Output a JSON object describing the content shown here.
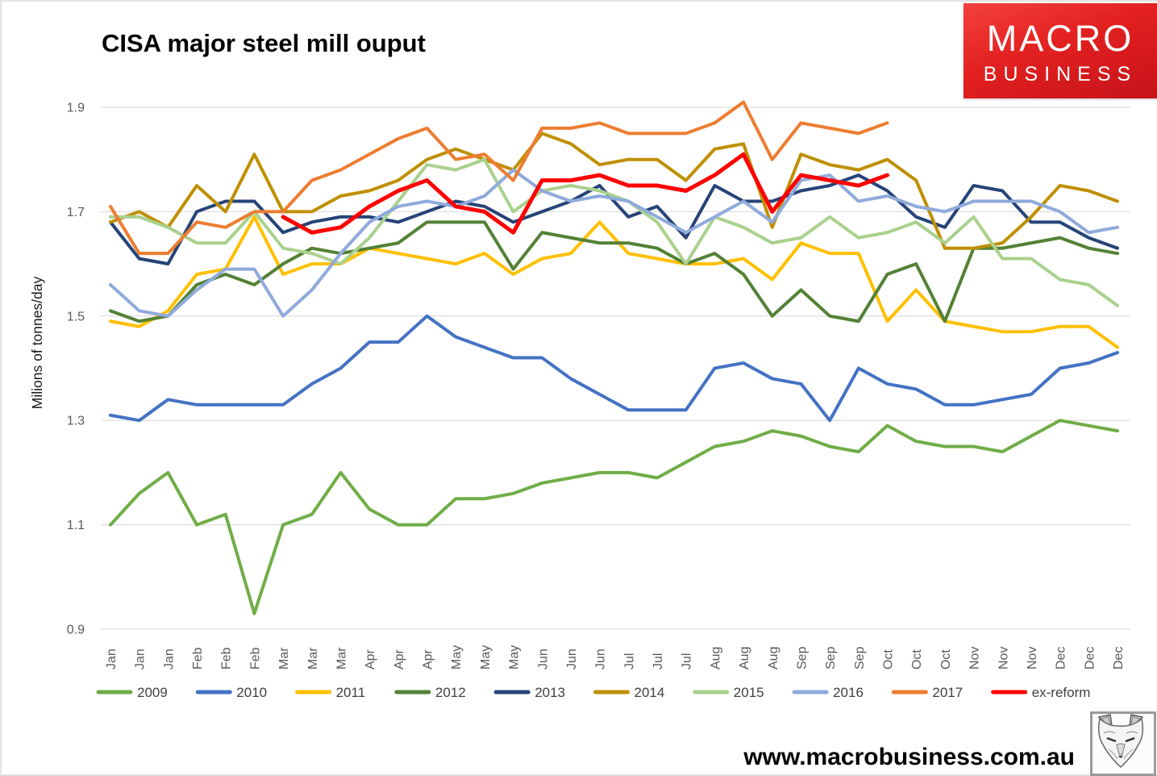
{
  "title": "CISA major steel mill ouput",
  "logo": {
    "line1": "MACRO",
    "line2": "BUSINESS"
  },
  "watermark": "www.macrobusiness.com.au",
  "footer_logo_icon": "fox-sketch-icon",
  "chart_data": {
    "type": "line",
    "title": "CISA major steel mill ouput",
    "xlabel": "",
    "ylabel": "Milions of tonnes/day",
    "ylim": [
      0.9,
      1.9
    ],
    "yticks": [
      0.9,
      1.1,
      1.3,
      1.5,
      1.7,
      1.9
    ],
    "grid": true,
    "legend_position": "bottom",
    "x_labels": [
      "Jan",
      "Jan",
      "Jan",
      "Feb",
      "Feb",
      "Feb",
      "Mar",
      "Mar",
      "Mar",
      "Apr",
      "Apr",
      "Apr",
      "May",
      "May",
      "May",
      "Jun",
      "Jun",
      "Jun",
      "Jul",
      "Jul",
      "Jul",
      "Aug",
      "Aug",
      "Aug",
      "Sep",
      "Sep",
      "Sep",
      "Oct",
      "Oct",
      "Oct",
      "Nov",
      "Nov",
      "Nov",
      "Dec",
      "Dec",
      "Dec"
    ],
    "series": [
      {
        "name": "2009",
        "color": "#70AD47",
        "values": [
          1.1,
          1.16,
          1.2,
          1.1,
          1.12,
          0.93,
          1.1,
          1.12,
          1.2,
          1.13,
          1.1,
          1.1,
          1.15,
          1.15,
          1.16,
          1.18,
          1.19,
          1.2,
          1.2,
          1.19,
          1.22,
          1.25,
          1.26,
          1.28,
          1.27,
          1.25,
          1.24,
          1.29,
          1.26,
          1.25,
          1.25,
          1.24,
          1.27,
          1.3,
          1.29,
          1.28
        ]
      },
      {
        "name": "2010",
        "color": "#4472C4",
        "values": [
          1.31,
          1.3,
          1.34,
          1.33,
          1.33,
          1.33,
          1.33,
          1.37,
          1.4,
          1.45,
          1.45,
          1.5,
          1.46,
          1.44,
          1.42,
          1.42,
          1.38,
          1.35,
          1.32,
          1.32,
          1.32,
          1.4,
          1.41,
          1.38,
          1.37,
          1.3,
          1.4,
          1.37,
          1.36,
          1.33,
          1.33,
          1.34,
          1.35,
          1.4,
          1.41,
          1.43
        ]
      },
      {
        "name": "2011",
        "color": "#FFC000",
        "values": [
          1.49,
          1.48,
          1.51,
          1.58,
          1.59,
          1.69,
          1.58,
          1.6,
          1.6,
          1.63,
          1.62,
          1.61,
          1.6,
          1.62,
          1.58,
          1.61,
          1.62,
          1.68,
          1.62,
          1.61,
          1.6,
          1.6,
          1.61,
          1.57,
          1.64,
          1.62,
          1.62,
          1.49,
          1.55,
          1.49,
          1.48,
          1.47,
          1.47,
          1.48,
          1.48,
          1.44
        ]
      },
      {
        "name": "2012",
        "color": "#538135",
        "values": [
          1.51,
          1.49,
          1.5,
          1.56,
          1.58,
          1.56,
          1.6,
          1.63,
          1.62,
          1.63,
          1.64,
          1.68,
          1.68,
          1.68,
          1.59,
          1.66,
          1.65,
          1.64,
          1.64,
          1.63,
          1.6,
          1.62,
          1.58,
          1.5,
          1.55,
          1.5,
          1.49,
          1.58,
          1.6,
          1.49,
          1.63,
          1.63,
          1.64,
          1.65,
          1.63,
          1.62
        ]
      },
      {
        "name": "2013",
        "color": "#264478",
        "values": [
          1.68,
          1.61,
          1.6,
          1.7,
          1.72,
          1.72,
          1.66,
          1.68,
          1.69,
          1.69,
          1.68,
          1.7,
          1.72,
          1.71,
          1.68,
          1.7,
          1.72,
          1.75,
          1.69,
          1.71,
          1.65,
          1.75,
          1.72,
          1.72,
          1.74,
          1.75,
          1.77,
          1.74,
          1.69,
          1.67,
          1.75,
          1.74,
          1.68,
          1.68,
          1.65,
          1.63
        ]
      },
      {
        "name": "2014",
        "color": "#BF8F00",
        "values": [
          1.68,
          1.7,
          1.67,
          1.75,
          1.7,
          1.81,
          1.7,
          1.7,
          1.73,
          1.74,
          1.76,
          1.8,
          1.82,
          1.8,
          1.78,
          1.85,
          1.83,
          1.79,
          1.8,
          1.8,
          1.76,
          1.82,
          1.83,
          1.67,
          1.81,
          1.79,
          1.78,
          1.8,
          1.76,
          1.63,
          1.63,
          1.64,
          1.69,
          1.75,
          1.74,
          1.72
        ]
      },
      {
        "name": "2015",
        "color": "#A9D18E",
        "values": [
          1.69,
          1.69,
          1.67,
          1.64,
          1.64,
          1.7,
          1.63,
          1.62,
          1.6,
          1.65,
          1.72,
          1.79,
          1.78,
          1.8,
          1.7,
          1.74,
          1.75,
          1.74,
          1.72,
          1.68,
          1.6,
          1.69,
          1.67,
          1.64,
          1.65,
          1.69,
          1.65,
          1.66,
          1.68,
          1.64,
          1.69,
          1.61,
          1.61,
          1.57,
          1.56,
          1.52
        ]
      },
      {
        "name": "2016",
        "color": "#8FAADC",
        "values": [
          1.56,
          1.51,
          1.5,
          1.55,
          1.59,
          1.59,
          1.5,
          1.55,
          1.62,
          1.68,
          1.71,
          1.72,
          1.71,
          1.73,
          1.78,
          1.74,
          1.72,
          1.73,
          1.72,
          1.69,
          1.66,
          1.69,
          1.72,
          1.68,
          1.76,
          1.77,
          1.72,
          1.73,
          1.71,
          1.7,
          1.72,
          1.72,
          1.72,
          1.7,
          1.66,
          1.67
        ]
      },
      {
        "name": "2017",
        "color": "#ED7D31",
        "values": [
          1.71,
          1.62,
          1.62,
          1.68,
          1.67,
          1.7,
          1.7,
          1.76,
          1.78,
          1.81,
          1.84,
          1.86,
          1.8,
          1.81,
          1.76,
          1.86,
          1.86,
          1.87,
          1.85,
          1.85,
          1.85,
          1.87,
          1.91,
          1.8,
          1.87,
          1.86,
          1.85,
          1.87,
          null,
          null,
          null,
          null,
          null,
          null,
          null,
          null
        ]
      },
      {
        "name": "ex-reform",
        "color": "#FF0000",
        "values": [
          null,
          null,
          null,
          null,
          null,
          null,
          1.69,
          1.66,
          1.67,
          1.71,
          1.74,
          1.76,
          1.71,
          1.7,
          1.66,
          1.76,
          1.76,
          1.77,
          1.75,
          1.75,
          1.74,
          1.77,
          1.81,
          1.7,
          1.77,
          1.76,
          1.75,
          1.77,
          null,
          null,
          null,
          null,
          null,
          null,
          null,
          null
        ]
      }
    ]
  },
  "style": {
    "grid_color": "#D6D6D6",
    "tick_color": "#595959",
    "legend_text_color": "#404040",
    "axis_title_color": "#1a1a1a",
    "line_width": 4,
    "highlight_line_width": 5
  }
}
